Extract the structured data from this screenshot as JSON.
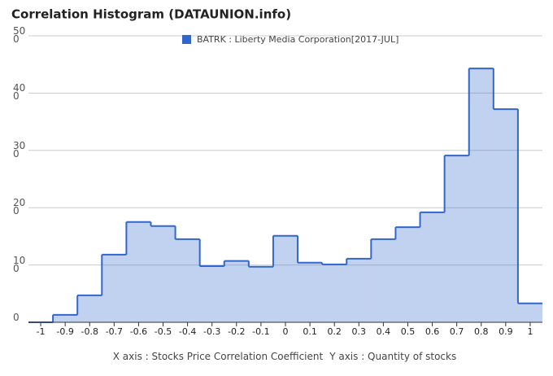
{
  "chart_data": {
    "type": "step-area",
    "title": "Correlation Histogram (DATAUNION.info)",
    "xlabel": "X axis : Stocks Price Correlation Coefficient",
    "ylabel": "Y axis : Quantity of stocks",
    "x": [
      -1,
      -0.9,
      -0.8,
      -0.7,
      -0.6,
      -0.5,
      -0.4,
      -0.3,
      -0.2,
      -0.1,
      0,
      0.1,
      0.2,
      0.3,
      0.4,
      0.5,
      0.6,
      0.7,
      0.8,
      0.9,
      1
    ],
    "series": [
      {
        "name": "BATRK : Liberty Media Corporation[2017-JUL]",
        "color": "#3366cc",
        "values": [
          0,
          13,
          47,
          118,
          175,
          168,
          145,
          98,
          107,
          97,
          151,
          104,
          101,
          111,
          145,
          166,
          192,
          291,
          443,
          372,
          33
        ]
      }
    ],
    "xlim": [
      -1.05,
      1.05
    ],
    "xticks": [
      -1,
      -0.9,
      -0.8,
      -0.7,
      -0.6,
      -0.5,
      -0.4,
      -0.3,
      -0.2,
      -0.1,
      0,
      0.1,
      0.2,
      0.3,
      0.4,
      0.5,
      0.6,
      0.7,
      0.8,
      0.9,
      1
    ],
    "ylim": [
      0,
      500
    ],
    "yticks": [
      0,
      100,
      200,
      300,
      400,
      500
    ],
    "grid": true
  }
}
